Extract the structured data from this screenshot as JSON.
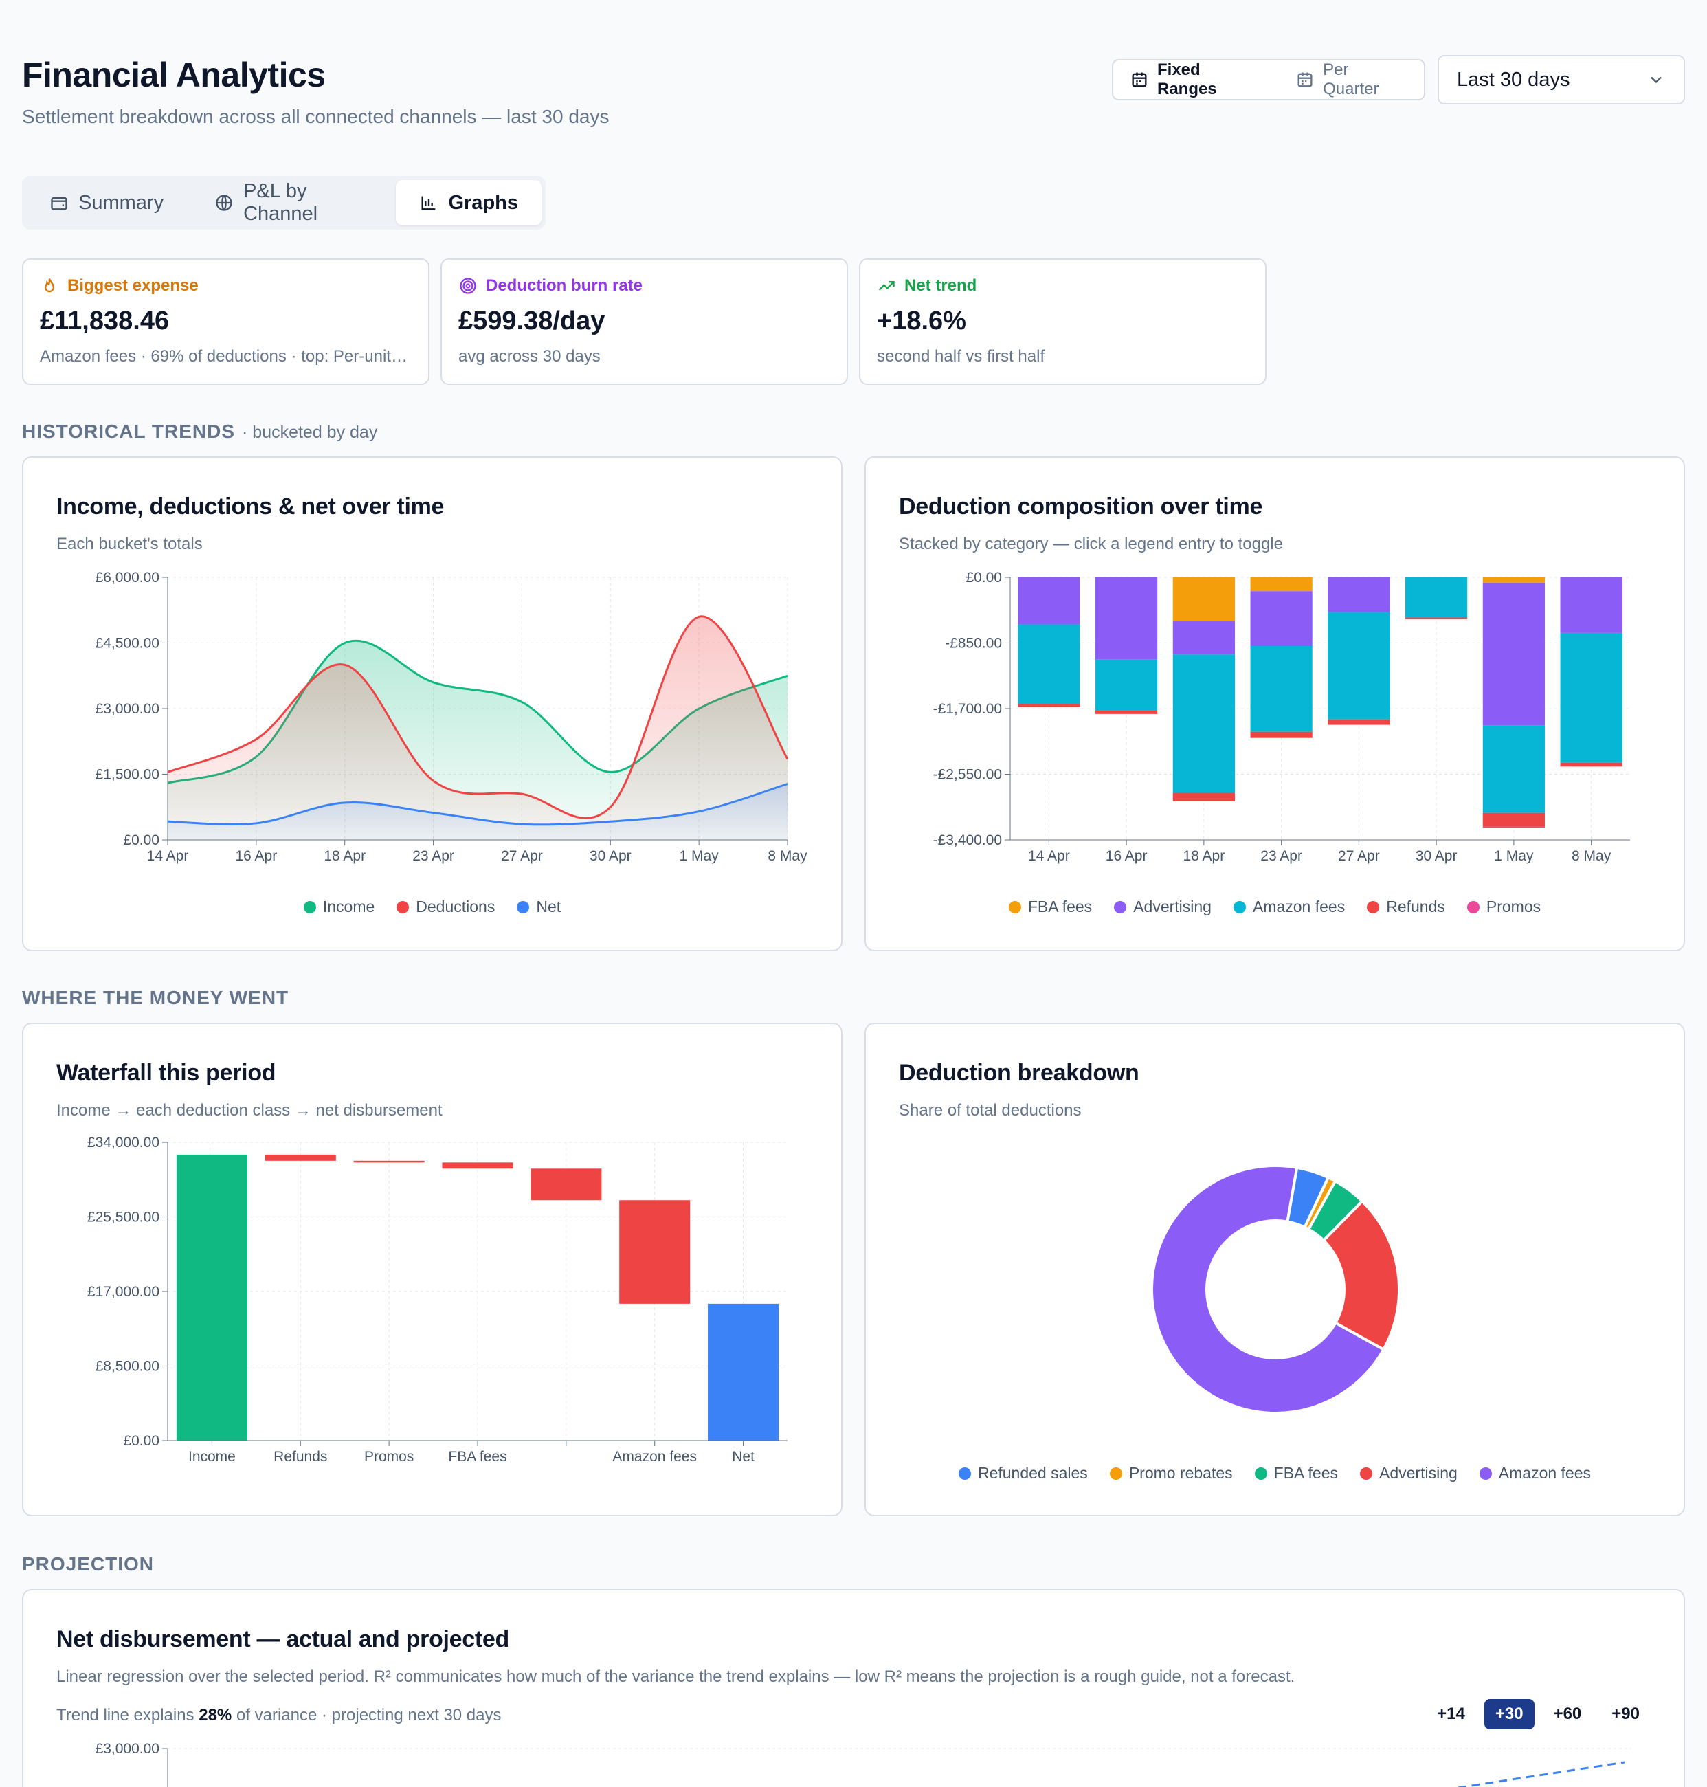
{
  "header": {
    "title": "Financial Analytics",
    "subtitle": "Settlement breakdown across all connected channels — last 30 days",
    "range_modes": [
      {
        "label": "Fixed Ranges",
        "icon": "calendar-icon",
        "active": true
      },
      {
        "label": "Per Quarter",
        "icon": "calendar-icon",
        "active": false
      }
    ],
    "period_select": "Last 30 days"
  },
  "tabs": [
    {
      "label": "Summary",
      "icon": "wallet-icon"
    },
    {
      "label": "P&L by Channel",
      "icon": "globe-icon"
    },
    {
      "label": "Graphs",
      "icon": "bar-chart-icon",
      "active": true
    }
  ],
  "kpis": [
    {
      "label": "Biggest expense",
      "value": "£11,838.46",
      "sub": "Amazon fees · 69% of deductions · top: Per-unit fee",
      "color": "#d97706",
      "icon": "flame-icon"
    },
    {
      "label": "Deduction burn rate",
      "value": "£599.38/day",
      "sub": "avg across 30 days",
      "color": "#9333ea",
      "icon": "target-icon"
    },
    {
      "label": "Net trend",
      "value": "+18.6%",
      "sub": "second half vs first half",
      "color": "#16a34a",
      "icon": "trending-up-icon"
    }
  ],
  "sections": {
    "historical": "HISTORICAL TRENDS",
    "historical_note": "· bucketed by day",
    "money": "WHERE THE MONEY WENT",
    "projection": "PROJECTION"
  },
  "income_chart": {
    "title": "Income, deductions & net over time",
    "subtitle": "Each bucket's totals"
  },
  "composition_chart": {
    "title": "Deduction composition over time",
    "subtitle": "Stacked by category — click a legend entry to toggle"
  },
  "waterfall_chart": {
    "title": "Waterfall this period",
    "subtitle": "Income → each deduction class → net disbursement"
  },
  "breakdown_chart": {
    "title": "Deduction breakdown",
    "subtitle": "Share of total deductions"
  },
  "projection": {
    "title": "Net disbursement — actual and projected",
    "subtitle": "Linear regression over the selected period. R² communicates how much of the variance the trend explains — low R² means the projection is a rough guide, not a forecast.",
    "trend_prefix": "Trend line explains",
    "trend_value": "28%",
    "trend_suffix": "of variance · projecting next 30 days",
    "horizons": [
      "+14",
      "+30",
      "+60",
      "+90"
    ],
    "active_horizon": "+30"
  },
  "chart_data": [
    {
      "type": "area",
      "x": [
        "14 Apr",
        "16 Apr",
        "18 Apr",
        "23 Apr",
        "27 Apr",
        "30 Apr",
        "1 May",
        "8 May"
      ],
      "ylim": [
        0,
        6000
      ],
      "yticks": [
        "£0.00",
        "£1,500.00",
        "£3,000.00",
        "£4,500.00",
        "£6,000.00"
      ],
      "series": [
        {
          "name": "Income",
          "color": "#10b981",
          "values": [
            1300,
            1900,
            4500,
            3600,
            3150,
            1550,
            3000,
            3750
          ]
        },
        {
          "name": "Deductions",
          "color": "#ef4444",
          "values": [
            1550,
            2300,
            4000,
            1350,
            1050,
            750,
            5100,
            1850
          ]
        },
        {
          "name": "Net",
          "color": "#3b82f6",
          "values": [
            420,
            380,
            850,
            620,
            360,
            420,
            650,
            1280
          ]
        }
      ]
    },
    {
      "type": "bar",
      "stacked": true,
      "categories": [
        "14 Apr",
        "16 Apr",
        "18 Apr",
        "23 Apr",
        "27 Apr",
        "30 Apr",
        "1 May",
        "8 May"
      ],
      "ylim": [
        -3400,
        0
      ],
      "yticks": [
        "£0.00",
        "-£850.00",
        "-£1,700.00",
        "-£2,550.00",
        "-£3,400.00"
      ],
      "series": [
        {
          "name": "FBA fees",
          "color": "#f59e0b",
          "values": [
            0,
            0,
            -570,
            -180,
            0,
            0,
            -70,
            0
          ]
        },
        {
          "name": "Advertising",
          "color": "#8b5cf6",
          "values": [
            -610,
            -1060,
            -430,
            -710,
            -450,
            0,
            -1850,
            -720
          ]
        },
        {
          "name": "Amazon fees",
          "color": "#06b6d4",
          "values": [
            -1030,
            -660,
            -1790,
            -1110,
            -1390,
            -520,
            -1130,
            -1680
          ]
        },
        {
          "name": "Refunds",
          "color": "#ef4444",
          "values": [
            -40,
            -50,
            -110,
            -80,
            -70,
            -20,
            -180,
            -50
          ]
        },
        {
          "name": "Promos",
          "color": "#ec4899",
          "values": [
            0,
            0,
            0,
            0,
            0,
            0,
            -10,
            0
          ]
        }
      ]
    },
    {
      "type": "bar",
      "waterfall": true,
      "categories": [
        "Income",
        "Refunds",
        "Promos",
        "FBA fees",
        "",
        "Amazon fees",
        "Net"
      ],
      "ylim": [
        0,
        34000
      ],
      "yticks": [
        "£0.00",
        "£8,500.00",
        "£17,000.00",
        "£25,500.00",
        "£34,000.00"
      ],
      "bars": [
        {
          "start": 0,
          "end": 32600,
          "color": "#10b981"
        },
        {
          "start": 32600,
          "end": 31900,
          "color": "#ef4444"
        },
        {
          "start": 31900,
          "end": 31700,
          "color": "#ef4444"
        },
        {
          "start": 31700,
          "end": 31000,
          "color": "#ef4444"
        },
        {
          "start": 31000,
          "end": 27400,
          "color": "#ef4444"
        },
        {
          "start": 27400,
          "end": 15600,
          "color": "#ef4444"
        },
        {
          "start": 0,
          "end": 15600,
          "color": "#3b82f6"
        }
      ]
    },
    {
      "type": "pie",
      "donut": true,
      "labels": [
        "Refunded sales",
        "Promo rebates",
        "FBA fees",
        "Advertising",
        "Amazon fees"
      ],
      "colors": [
        "#3b82f6",
        "#f59e0b",
        "#10b981",
        "#ef4444",
        "#8b5cf6"
      ],
      "values": [
        4.2,
        1.0,
        4.3,
        20.5,
        69.0
      ]
    },
    {
      "type": "line",
      "ylim_top": "£3,000.00"
    }
  ]
}
